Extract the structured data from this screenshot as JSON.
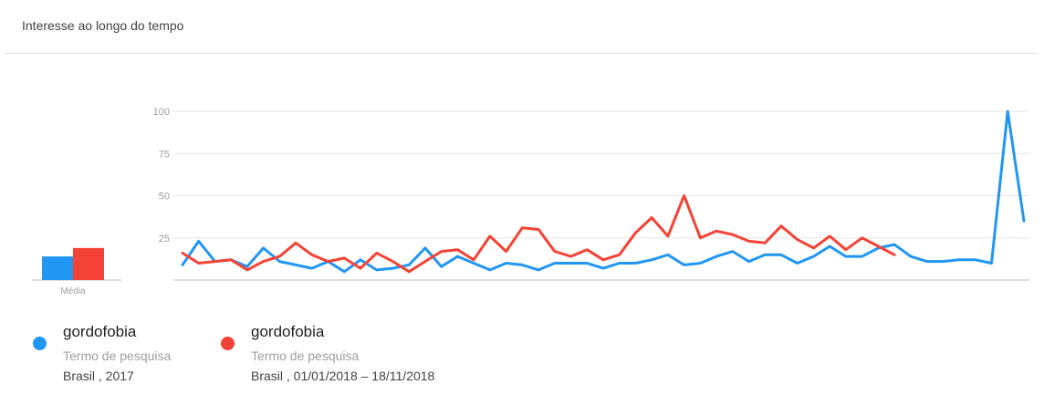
{
  "header": {
    "title": "Interesse ao longo do tempo"
  },
  "chart_data": {
    "type": "line",
    "ylim": [
      0,
      100
    ],
    "yticks": [
      25,
      50,
      75,
      100
    ],
    "grid": true,
    "average_label": "Média",
    "averages": [
      14,
      19
    ],
    "series": [
      {
        "name": "gordofobia",
        "color": "#2196f3",
        "values": [
          9,
          23,
          11,
          12,
          8,
          19,
          11,
          9,
          7,
          11,
          5,
          12,
          6,
          7,
          9,
          19,
          8,
          14,
          10,
          6,
          10,
          9,
          6,
          10,
          10,
          10,
          7,
          10,
          10,
          12,
          15,
          9,
          10,
          14,
          17,
          11,
          15,
          15,
          10,
          14,
          20,
          14,
          14,
          19,
          21,
          14,
          11,
          11,
          12,
          12,
          10,
          100,
          35
        ]
      },
      {
        "name": "gordofobia",
        "color": "#f44336",
        "values": [
          16,
          10,
          11,
          12,
          6,
          11,
          14,
          22,
          15,
          11,
          13,
          7,
          16,
          11,
          5,
          11,
          17,
          18,
          12,
          26,
          17,
          31,
          30,
          17,
          14,
          18,
          12,
          15,
          28,
          37,
          26,
          50,
          25,
          29,
          27,
          23,
          22,
          32,
          24,
          19,
          26,
          18,
          25,
          20,
          15
        ]
      }
    ]
  },
  "legend": [
    {
      "term": "gordofobia",
      "type": "Termo de pesquisa",
      "scope": "Brasil , 2017",
      "color": "#2196f3"
    },
    {
      "term": "gordofobia",
      "type": "Termo de pesquisa",
      "scope": "Brasil , 01/01/2018 – 18/11/2018",
      "color": "#f44336"
    }
  ]
}
